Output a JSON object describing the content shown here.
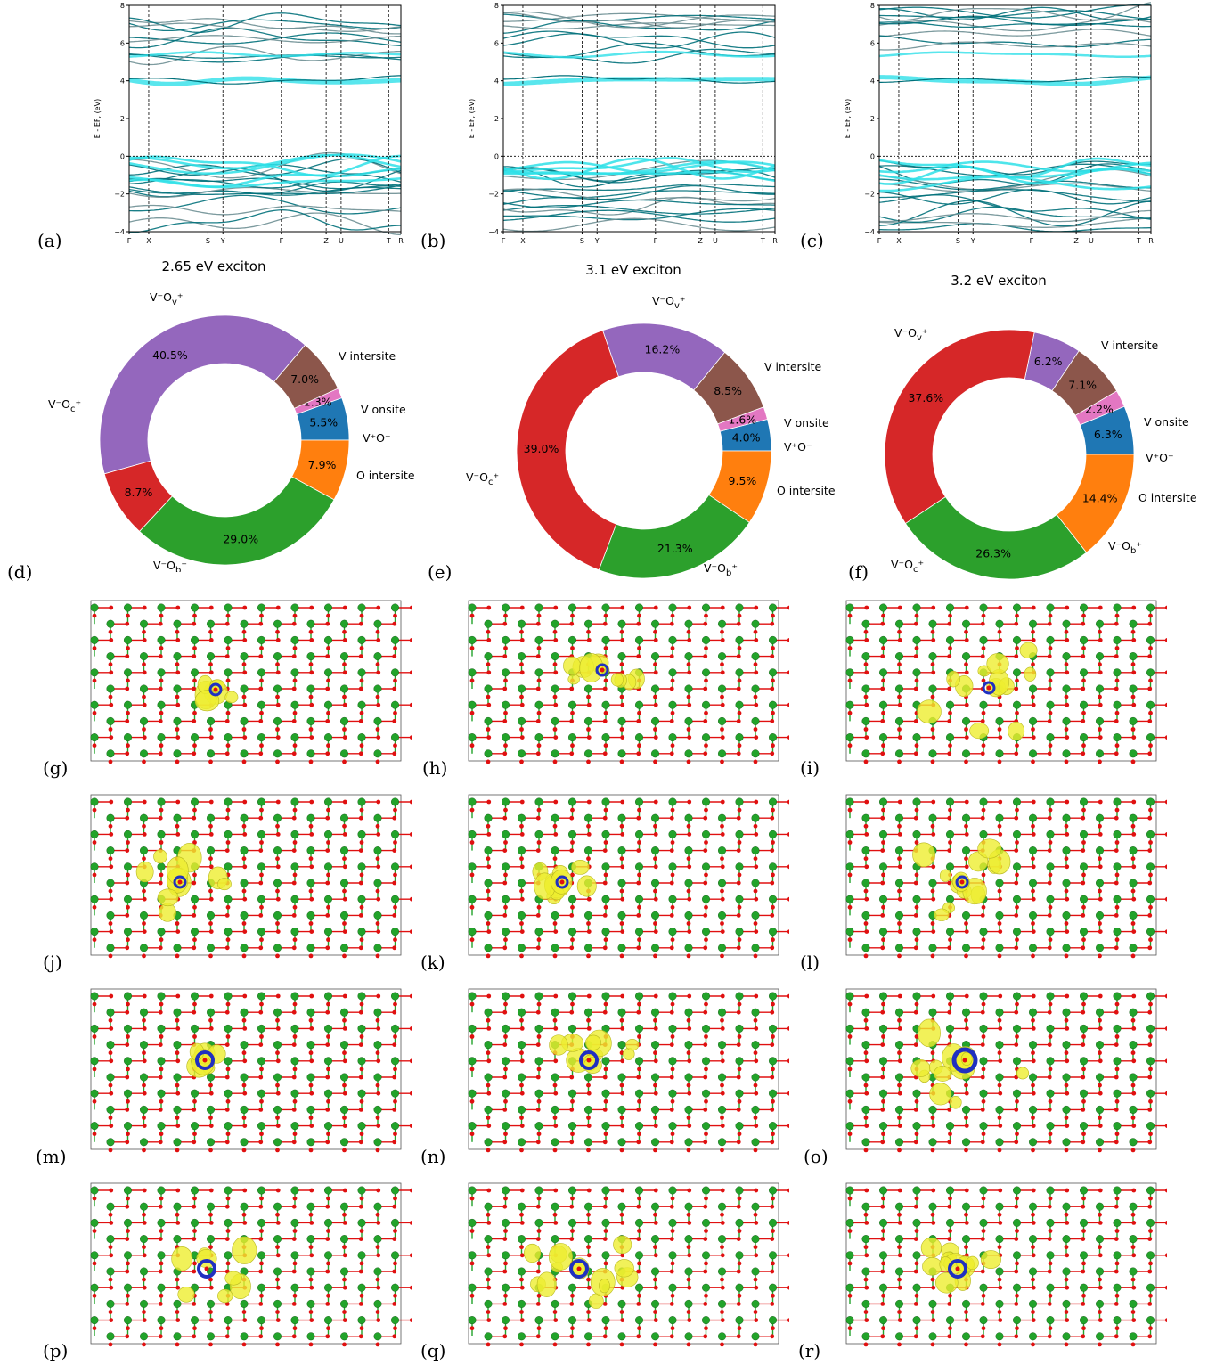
{
  "figure": {
    "panel_labels": [
      "(a)",
      "(b)",
      "(c)",
      "(d)",
      "(e)",
      "(f)",
      "(g)",
      "(h)",
      "(i)",
      "(j)",
      "(k)",
      "(l)",
      "(m)",
      "(n)",
      "(o)",
      "(p)",
      "(q)",
      "(r)"
    ]
  },
  "chart_data": [
    {
      "panel": "(a)",
      "type": "line",
      "ylabel": "E - E_F, (eV)",
      "ylim": [
        -4,
        8
      ],
      "yticks": [
        -4,
        -2,
        0,
        2,
        4,
        6,
        8
      ],
      "high_symmetry_points": [
        "Γ",
        "X",
        "S",
        "Y",
        "Γ",
        "Z",
        "U",
        "T",
        "R"
      ],
      "grid": "vertical dashed lines at high-symmetry points; dotted line at E=0",
      "series_colors": [
        "#00707a",
        "#2fe0e8",
        "#6e8f93"
      ]
    },
    {
      "panel": "(b)",
      "type": "line",
      "ylabel": "E - E_F, (eV)",
      "ylim": [
        -4,
        8
      ],
      "yticks": [
        -4,
        -2,
        0,
        2,
        4,
        6,
        8
      ],
      "high_symmetry_points": [
        "Γ",
        "X",
        "S",
        "Y",
        "Γ",
        "Z",
        "U",
        "T",
        "R"
      ],
      "grid": "vertical dashed lines at high-symmetry points; dotted line at E=0",
      "series_colors": [
        "#00707a",
        "#2fe0e8",
        "#6e8f93"
      ]
    },
    {
      "panel": "(c)",
      "type": "line",
      "ylabel": "E - E_F, (eV)",
      "ylim": [
        -4,
        8
      ],
      "yticks": [
        -4,
        -2,
        0,
        2,
        4,
        6,
        8
      ],
      "high_symmetry_points": [
        "Γ",
        "X",
        "S",
        "Y",
        "Γ",
        "Z",
        "U",
        "T",
        "R"
      ],
      "grid": "vertical dashed lines at high-symmetry points; dotted line at E=0",
      "series_colors": [
        "#00707a",
        "#2fe0e8",
        "#6e8f93"
      ]
    },
    {
      "panel": "(d)",
      "type": "pie",
      "title": "2.65 eV exciton",
      "slices": [
        {
          "label": "V onsite",
          "value": 5.5,
          "pct": "5.5%",
          "color": "#1f77b4"
        },
        {
          "label": "V⁺O⁻",
          "value": 1.3,
          "pct": "1.3%",
          "color": "#e377c2"
        },
        {
          "label": "O intersite",
          "value": 7.0,
          "pct": "7.0%",
          "color": "#8c564b"
        },
        {
          "label": "V⁻O_b⁺",
          "value": 40.5,
          "pct": "40.5%",
          "color": "#9467bd"
        },
        {
          "label": "V⁻O_c⁺",
          "value": 8.7,
          "pct": "8.7%",
          "color": "#d62728"
        },
        {
          "label": "V⁻O_v⁺",
          "value": 29.0,
          "pct": "29.0%",
          "color": "#2ca02c"
        },
        {
          "label": "V intersite",
          "value": 7.9,
          "pct": "7.9%",
          "color": "#ff7f0e"
        }
      ]
    },
    {
      "panel": "(e)",
      "type": "pie",
      "title": "3.1 eV exciton",
      "slices": [
        {
          "label": "V onsite",
          "value": 4.0,
          "pct": "4.0%",
          "color": "#1f77b4"
        },
        {
          "label": "V⁺O⁻",
          "value": 1.6,
          "pct": "1.6%",
          "color": "#e377c2"
        },
        {
          "label": "O intersite",
          "value": 8.5,
          "pct": "8.5%",
          "color": "#8c564b"
        },
        {
          "label": "V⁻O_b⁺",
          "value": 16.2,
          "pct": "16.2%",
          "color": "#9467bd"
        },
        {
          "label": "V⁻O_c⁺",
          "value": 39.0,
          "pct": "39.0%",
          "color": "#d62728"
        },
        {
          "label": "V⁻O_v⁺",
          "value": 21.3,
          "pct": "21.3%",
          "color": "#2ca02c"
        },
        {
          "label": "V intersite",
          "value": 9.5,
          "pct": "9.5%",
          "color": "#ff7f0e"
        }
      ]
    },
    {
      "panel": "(f)",
      "type": "pie",
      "title": "3.2 eV exciton",
      "slices": [
        {
          "label": "V onsite",
          "value": 6.3,
          "pct": "6.3%",
          "color": "#1f77b4"
        },
        {
          "label": "V⁺O⁻",
          "value": 2.2,
          "pct": "2.2%",
          "color": "#e377c2"
        },
        {
          "label": "O intersite",
          "value": 7.1,
          "pct": "7.1%",
          "color": "#8c564b"
        },
        {
          "label": "V⁻O_b⁺",
          "value": 6.2,
          "pct": "6.2%",
          "color": "#9467bd"
        },
        {
          "label": "V⁻O_c⁺",
          "value": 37.6,
          "pct": "37.6%",
          "color": "#d62728"
        },
        {
          "label": "V⁻O_v⁺",
          "value": 26.3,
          "pct": "26.3%",
          "color": "#2ca02c"
        },
        {
          "label": "V intersite",
          "value": 14.4,
          "pct": "14.4%",
          "color": "#ff7f0e"
        }
      ]
    }
  ],
  "lattice_colors": {
    "vanadium": "#22a32a",
    "oxygen": "#e01010",
    "isosurface": "#eeee30",
    "hole_center": "#2030c0"
  }
}
